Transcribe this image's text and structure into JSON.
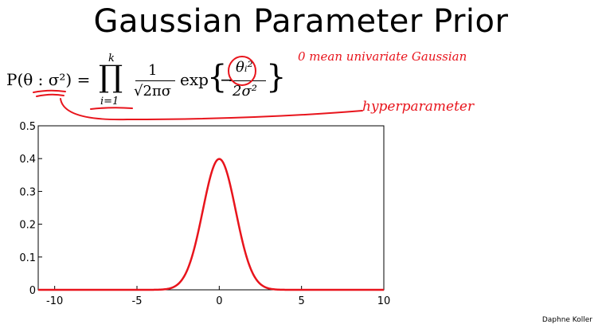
{
  "slide": {
    "title": "Gaussian Parameter Prior",
    "author": "Daphne Koller"
  },
  "formula": {
    "lhs": "P(θ : σ²) =",
    "product_symbol": "∏",
    "product_upper": "k",
    "product_lower": "i=1",
    "frac1_num": "1",
    "frac1_den": "√2πσ",
    "exp_word": "exp",
    "brace_open": "{",
    "minus": "−",
    "frac2_num": "θᵢ²",
    "frac2_den": "2σ²",
    "brace_close": "}"
  },
  "annotations": {
    "note1": "0 mean univariate Gaussian",
    "note2": "hyperparameter",
    "color": "#e8141c"
  },
  "chart_data": {
    "type": "line",
    "series": [
      {
        "function": "standard normal pdf",
        "mean": 0,
        "sigma": 1,
        "color": "#e8141c"
      }
    ],
    "xlim": [
      -11,
      10
    ],
    "ylim": [
      0,
      0.5
    ],
    "x_ticks": [
      -10,
      -5,
      0,
      5,
      10
    ],
    "y_ticks": [
      0,
      0.1,
      0.2,
      0.3,
      0.4,
      0.5
    ],
    "x_tick_labels": [
      "-10",
      "-5",
      "0",
      "5",
      "10"
    ],
    "y_tick_labels": [
      "0",
      "0.1",
      "0.2",
      "0.3",
      "0.4",
      "0.5"
    ],
    "grid": false,
    "title": "",
    "xlabel": "",
    "ylabel": ""
  }
}
